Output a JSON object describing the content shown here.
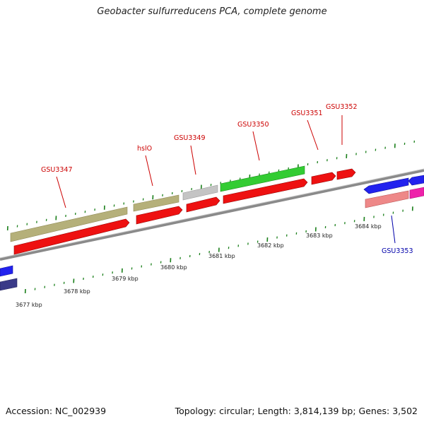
{
  "title": "Geobacter sulfurreducens PCA, complete genome",
  "footer": {
    "accession": "Accession: NC_002939",
    "stats": "Topology: circular; Length: 3,814,139 bp; Genes: 3,502"
  },
  "colors": {
    "backbone": "#8a8a8a",
    "tick": "#1a7f1a",
    "label_red": "#cc0000",
    "label_blue": "#0000aa",
    "gene_olive": "#b5b07a",
    "gene_red": "#ee1111",
    "gene_gray": "#c4c4c4",
    "gene_green": "#33cc33",
    "gene_blue": "#2222ee",
    "gene_navy": "#3a3a88",
    "gene_pink": "#ee8888",
    "gene_magenta": "#ee22aa"
  },
  "scale_labels": [
    "3677 kbp",
    "3678 kbp",
    "3679 kbp",
    "3680 kbp",
    "3681 kbp",
    "3682 kbp",
    "3683 kbp",
    "3684 kbp"
  ],
  "gene_labels": [
    {
      "name": "GSU3347",
      "color": "red"
    },
    {
      "name": "hslO",
      "color": "red"
    },
    {
      "name": "GSU3349",
      "color": "red"
    },
    {
      "name": "GSU3350",
      "color": "red"
    },
    {
      "name": "GSU3351",
      "color": "red"
    },
    {
      "name": "GSU3352",
      "color": "red"
    },
    {
      "name": "GSU3353",
      "color": "blue"
    }
  ]
}
